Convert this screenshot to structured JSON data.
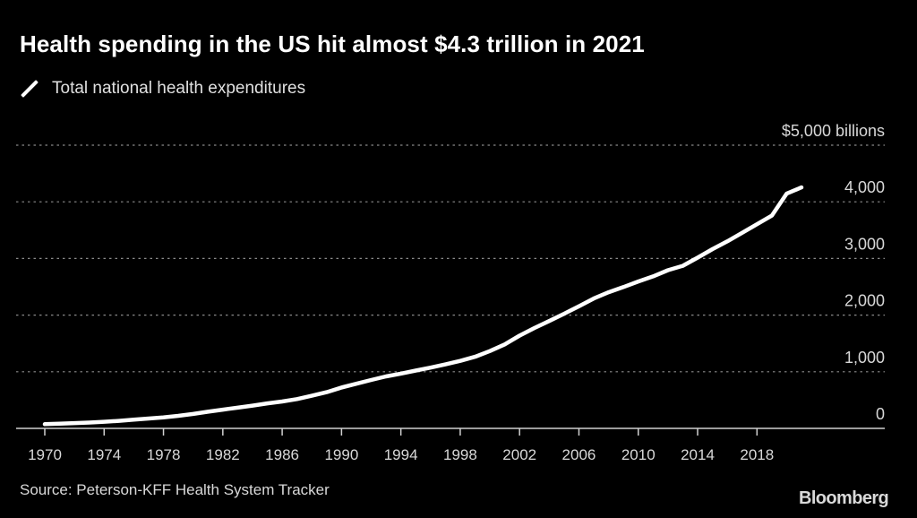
{
  "title": "Health spending in the US hit almost $4.3 trillion in 2021",
  "legend": {
    "label": "Total national health expenditures",
    "icon": "line-swatch-icon"
  },
  "source": "Source: Peterson-KFF Health System Tracker",
  "brand": "Bloomberg",
  "colors": {
    "background": "#000000",
    "line": "#ffffff",
    "grid": "#8a8a8a",
    "text": "#d8d8d8"
  },
  "chart_data": {
    "type": "line",
    "title": "Health spending in the US hit almost $4.3 trillion in 2021",
    "xlabel": "",
    "ylabel": "$ billions",
    "ylim": [
      0,
      5000
    ],
    "xlim": [
      1970,
      2021
    ],
    "y_ticks": [
      0,
      1000,
      2000,
      3000,
      4000,
      5000
    ],
    "y_tick_labels": [
      "0",
      "1,000",
      "2,000",
      "3,000",
      "4,000",
      "$5,000 billions"
    ],
    "x_ticks": [
      1970,
      1974,
      1978,
      1982,
      1986,
      1990,
      1994,
      1998,
      2002,
      2006,
      2010,
      2014,
      2018
    ],
    "x_tick_labels": [
      "1970",
      "1974",
      "1978",
      "1982",
      "1986",
      "1990",
      "1994",
      "1998",
      "2002",
      "2006",
      "2010",
      "2014",
      "2018"
    ],
    "grid": "horizontal dotted",
    "legend_position": "top-left",
    "series": [
      {
        "name": "Total national health expenditures",
        "x": [
          1970,
          1971,
          1972,
          1973,
          1974,
          1975,
          1976,
          1977,
          1978,
          1979,
          1980,
          1981,
          1982,
          1983,
          1984,
          1985,
          1986,
          1987,
          1988,
          1989,
          1990,
          1991,
          1992,
          1993,
          1994,
          1995,
          1996,
          1997,
          1998,
          1999,
          2000,
          2001,
          2002,
          2003,
          2004,
          2005,
          2006,
          2007,
          2008,
          2009,
          2010,
          2011,
          2012,
          2013,
          2014,
          2015,
          2016,
          2017,
          2018,
          2019,
          2020,
          2021
        ],
        "values": [
          75,
          83,
          93,
          103,
          117,
          133,
          153,
          174,
          195,
          221,
          254,
          294,
          331,
          365,
          402,
          442,
          474,
          517,
          576,
          640,
          721,
          788,
          854,
          917,
          967,
          1021,
          1073,
          1130,
          1191,
          1265,
          1366,
          1482,
          1637,
          1772,
          1895,
          2024,
          2157,
          2292,
          2403,
          2496,
          2593,
          2684,
          2793,
          2870,
          3014,
          3164,
          3302,
          3453,
          3604,
          3757,
          4144,
          4255
        ]
      }
    ]
  }
}
